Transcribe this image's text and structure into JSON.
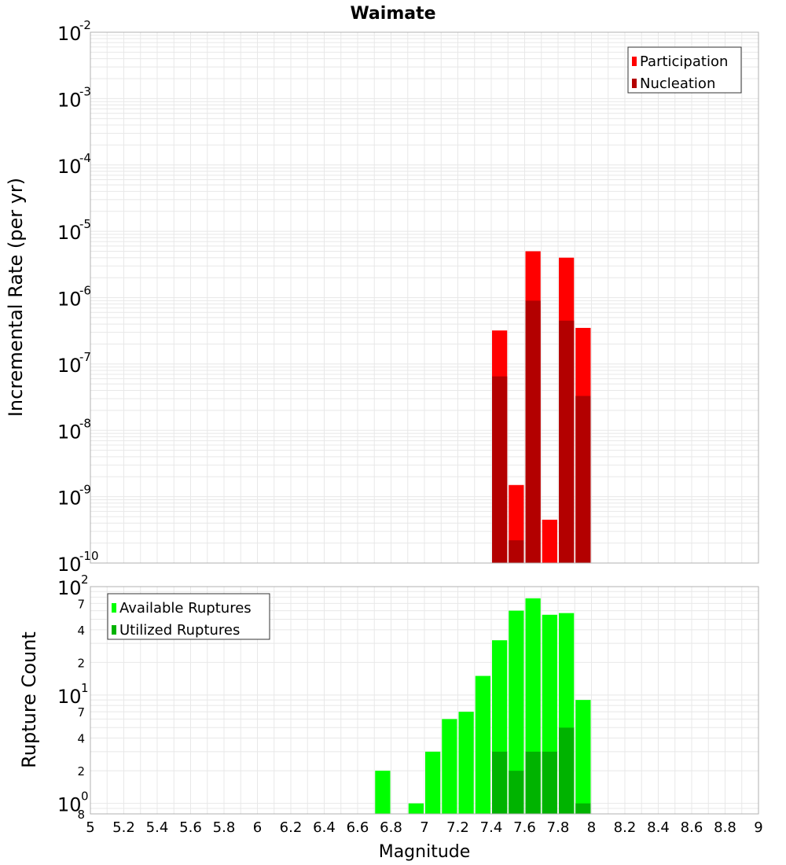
{
  "chart_data": [
    {
      "type": "bar",
      "title": "Waimate",
      "ylabel": "Incremental Rate (per yr)",
      "y_scale": "log",
      "ylim": [
        1e-10,
        0.01
      ],
      "xlim": [
        5,
        9
      ],
      "grid": true,
      "legend_placement": "top-right",
      "y_major_ticks": [
        {
          "base": "10",
          "exp": "-2"
        },
        {
          "base": "10",
          "exp": "-3"
        },
        {
          "base": "10",
          "exp": "-4"
        },
        {
          "base": "10",
          "exp": "-5"
        },
        {
          "base": "10",
          "exp": "-6"
        },
        {
          "base": "10",
          "exp": "-7"
        },
        {
          "base": "10",
          "exp": "-8"
        },
        {
          "base": "10",
          "exp": "-9"
        },
        {
          "base": "10",
          "exp": "-10"
        }
      ],
      "x": [
        7.45,
        7.55,
        7.65,
        7.75,
        7.85,
        7.95
      ],
      "series": [
        {
          "name": "Participation",
          "color": "#ff0000",
          "values": [
            3.2e-07,
            1.5e-09,
            5e-06,
            4.5e-10,
            4e-06,
            3.5e-07
          ]
        },
        {
          "name": "Nucleation",
          "color": "#b30000",
          "values": [
            6.5e-08,
            2.2e-10,
            9e-07,
            null,
            4.5e-07,
            3.3e-08
          ]
        }
      ]
    },
    {
      "type": "bar",
      "xlabel": "Magnitude",
      "ylabel": "Rupture Count",
      "y_scale": "log",
      "ylim": [
        0.8,
        100
      ],
      "xlim": [
        5,
        9
      ],
      "grid": true,
      "legend_placement": "top-left",
      "x_ticks": [
        "5",
        "5.2",
        "5.4",
        "5.6",
        "5.8",
        "6",
        "6.2",
        "6.4",
        "6.6",
        "6.8",
        "7",
        "7.2",
        "7.4",
        "7.6",
        "7.8",
        "8",
        "8.2",
        "8.4",
        "8.6",
        "8.8",
        "9"
      ],
      "y_major_ticks": [
        {
          "value": 100,
          "base": "10",
          "exp": "2"
        },
        {
          "value": 10,
          "base": "10",
          "exp": "1"
        },
        {
          "value": 1,
          "base": "10",
          "exp": "0"
        }
      ],
      "y_minor_ticks": [
        {
          "value": 70,
          "label": "7"
        },
        {
          "value": 40,
          "label": "4"
        },
        {
          "value": 20,
          "label": "2"
        },
        {
          "value": 7,
          "label": "7"
        },
        {
          "value": 4,
          "label": "4"
        },
        {
          "value": 2,
          "label": "2"
        },
        {
          "value": 0.8,
          "label": "8"
        }
      ],
      "x": [
        6.75,
        6.95,
        7.05,
        7.15,
        7.25,
        7.35,
        7.45,
        7.55,
        7.65,
        7.75,
        7.85,
        7.95
      ],
      "series": [
        {
          "name": "Available Ruptures",
          "color": "#00ff00",
          "values": [
            2,
            1,
            3,
            6,
            7,
            15,
            32,
            60,
            78,
            55,
            57,
            9
          ]
        },
        {
          "name": "Utilized Ruptures",
          "color": "#00b300",
          "values": [
            null,
            null,
            null,
            null,
            null,
            null,
            3,
            2,
            3,
            3,
            5,
            1
          ]
        }
      ]
    }
  ]
}
